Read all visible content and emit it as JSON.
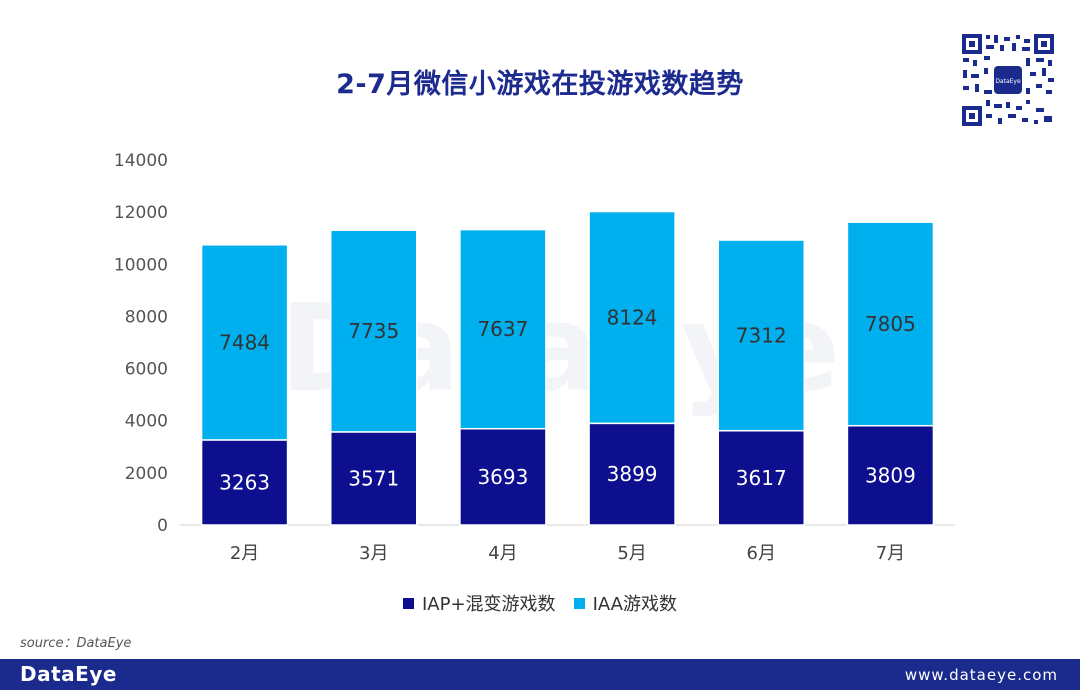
{
  "chart_data": {
    "type": "bar",
    "stacked": true,
    "title": "2-7月微信小游戏在投游戏数趋势",
    "categories": [
      "2月",
      "3月",
      "4月",
      "5月",
      "6月",
      "7月"
    ],
    "series": [
      {
        "name": "IAP+混变游戏数",
        "values": [
          3263,
          3571,
          3693,
          3899,
          3617,
          3809
        ],
        "color": "#0d0f8f"
      },
      {
        "name": "IAA游戏数",
        "values": [
          7484,
          7735,
          7637,
          8124,
          7312,
          7805
        ],
        "color": "#00b0ee"
      }
    ],
    "ylim": [
      0,
      14000
    ],
    "yticks": [
      0,
      2000,
      4000,
      6000,
      8000,
      10000,
      12000,
      14000
    ],
    "xlabel": "",
    "ylabel": "",
    "legend": "bottom"
  },
  "watermark": "DataEye",
  "source": "source：DataEye",
  "footer": {
    "brand": "DataEye",
    "website": "www.dataeye.com"
  },
  "qr_label": "DataEye",
  "colors": {
    "title": "#1d2b8f",
    "footer_bg": "#1b2a8d",
    "iap": "#0d0f8f",
    "iaa": "#00b0ee"
  }
}
